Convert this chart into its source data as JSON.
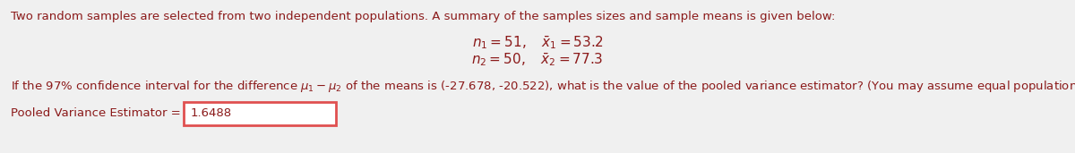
{
  "bg_color": "#f0f0f0",
  "text_color": "#8b1a1a",
  "line1": "Two random samples are selected from two independent populations. A summary of the samples sizes and sample means is given below:",
  "eq_line1": "$n_1 = 51, \\quad \\bar{x}_1 = 53.2$",
  "eq_line2": "$n_2 = 50, \\quad \\bar{x}_2 = 77.3$",
  "question": "If the 97% confidence interval for the difference $\\mu_1 - \\mu_2$ of the means is (-27.678, -20.522), what is the value of the pooled variance estimator? (You may assume equal population variances.)",
  "answer_label": "Pooled Variance Estimator = ",
  "answer_value": "1.6488",
  "box_edge_color": "#e05050",
  "box_face_color": "#ffffff",
  "font_size": 9.5,
  "eq_font_size": 11.0,
  "answer_font_size": 9.5,
  "fig_width": 12.0,
  "fig_height": 1.71,
  "dpi": 100
}
